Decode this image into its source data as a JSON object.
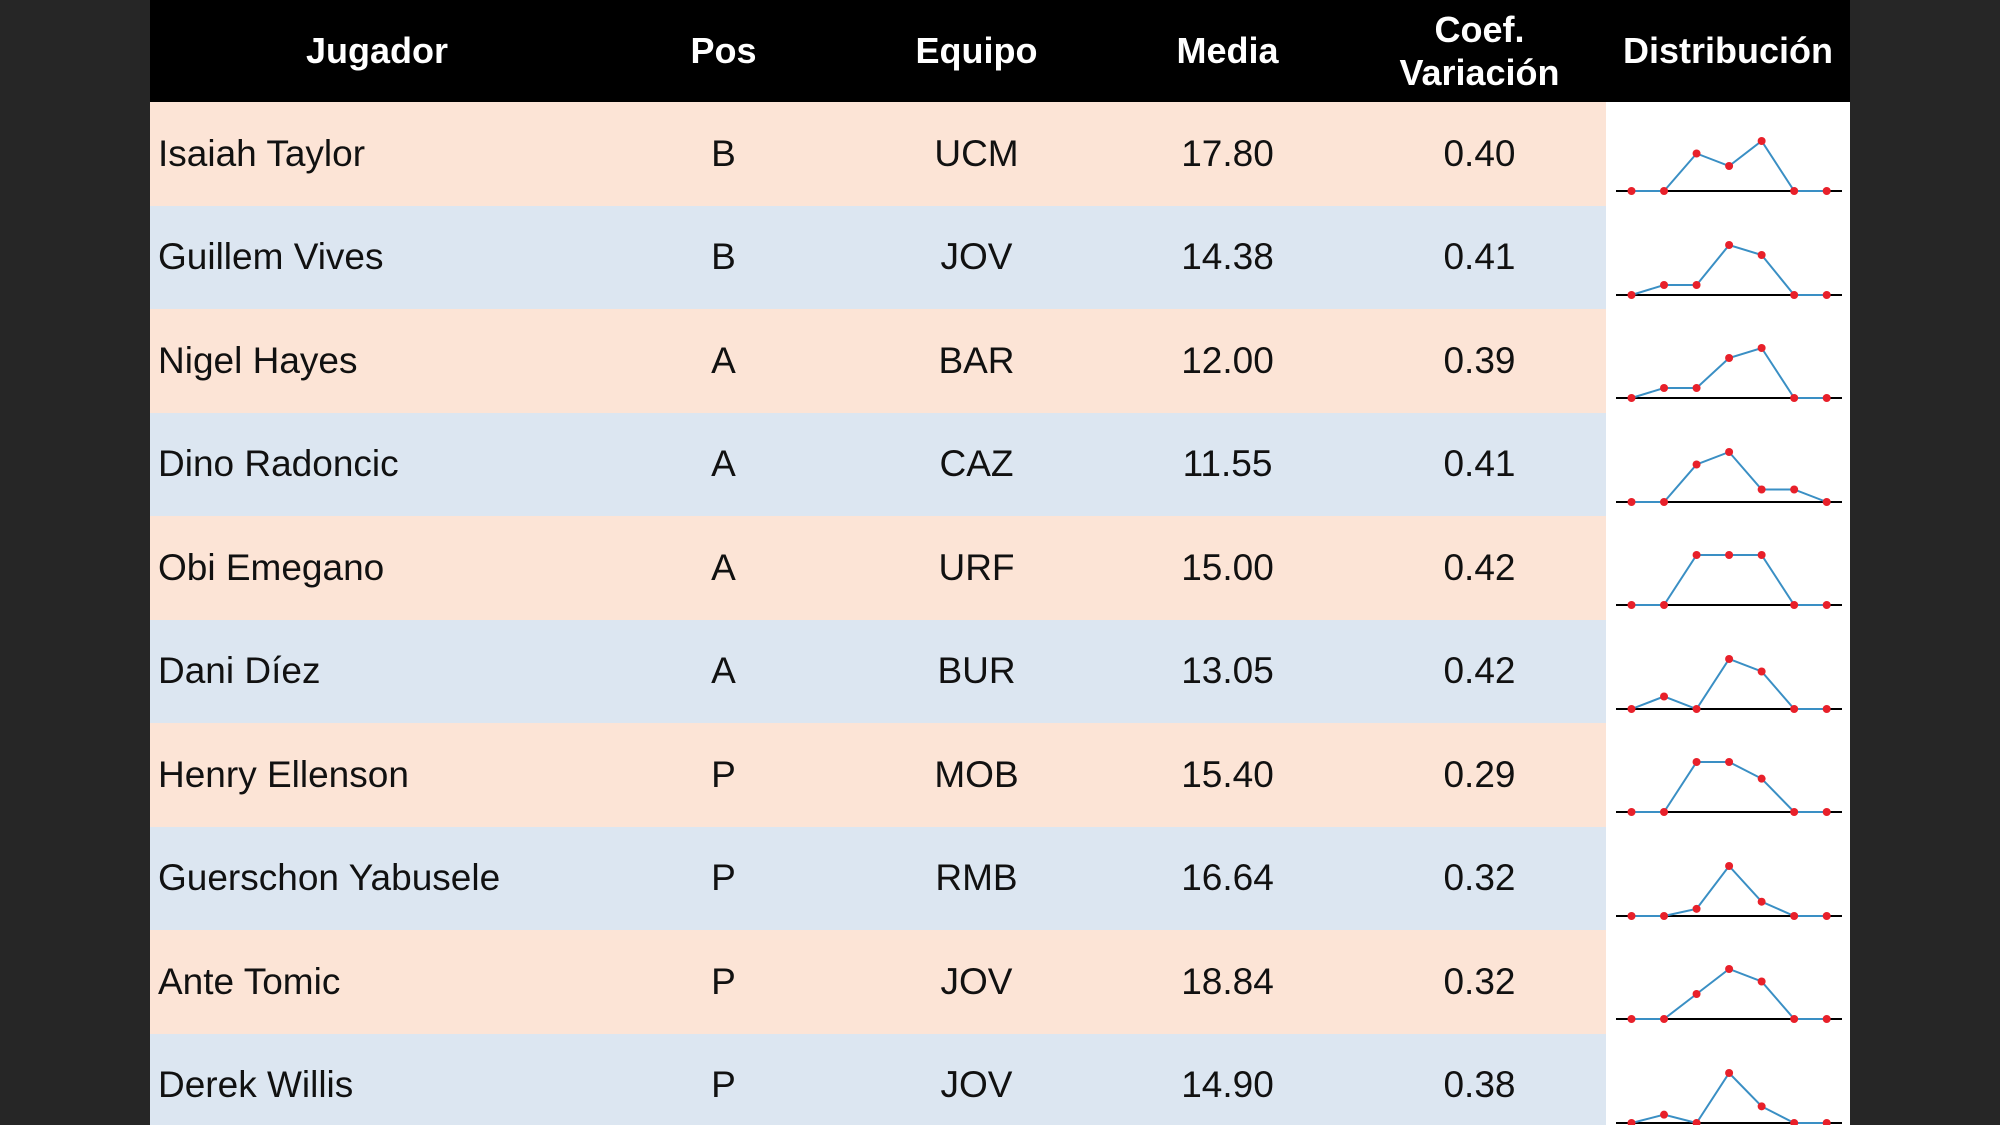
{
  "table": {
    "columns": [
      "Jugador",
      "Pos",
      "Equipo",
      "Media",
      "Coef. Variación",
      "Distribución"
    ],
    "rows": [
      {
        "cells": [
          "Isaiah Taylor",
          "B",
          "UCM",
          "17.80",
          "0.40"
        ],
        "distribution": [
          0,
          0,
          3,
          2,
          4,
          0,
          0
        ]
      },
      {
        "cells": [
          "Guillem Vives",
          "B",
          "JOV",
          "14.38",
          "0.41"
        ],
        "distribution": [
          0,
          1,
          1,
          5,
          4,
          0,
          0
        ]
      },
      {
        "cells": [
          "Nigel Hayes",
          "A",
          "BAR",
          "12.00",
          "0.39"
        ],
        "distribution": [
          0,
          1,
          1,
          4,
          5,
          0,
          0
        ]
      },
      {
        "cells": [
          "Dino Radoncic",
          "A",
          "CAZ",
          "11.55",
          "0.41"
        ],
        "distribution": [
          0,
          0,
          3,
          4,
          1,
          1,
          0
        ]
      },
      {
        "cells": [
          "Obi Emegano",
          "A",
          "URF",
          "15.00",
          "0.42"
        ],
        "distribution": [
          0,
          0,
          1,
          1,
          1,
          0,
          0
        ]
      },
      {
        "cells": [
          "Dani Díez",
          "A",
          "BUR",
          "13.05",
          "0.42"
        ],
        "distribution": [
          0,
          1,
          0,
          4,
          3,
          0,
          0
        ]
      },
      {
        "cells": [
          "Henry Ellenson",
          "P",
          "MOB",
          "15.40",
          "0.29"
        ],
        "distribution": [
          0,
          0,
          3,
          3,
          2,
          0,
          0
        ]
      },
      {
        "cells": [
          "Guerschon Yabusele",
          "P",
          "RMB",
          "16.64",
          "0.32"
        ],
        "distribution": [
          0,
          0,
          1,
          7,
          2,
          0,
          0
        ]
      },
      {
        "cells": [
          "Ante Tomic",
          "P",
          "JOV",
          "18.84",
          "0.32"
        ],
        "distribution": [
          0,
          0,
          2,
          4,
          3,
          0,
          0
        ]
      },
      {
        "cells": [
          "Derek Willis",
          "P",
          "JOV",
          "14.90",
          "0.38"
        ],
        "distribution": [
          0,
          1,
          0,
          6,
          2,
          0,
          0
        ]
      }
    ]
  }
}
